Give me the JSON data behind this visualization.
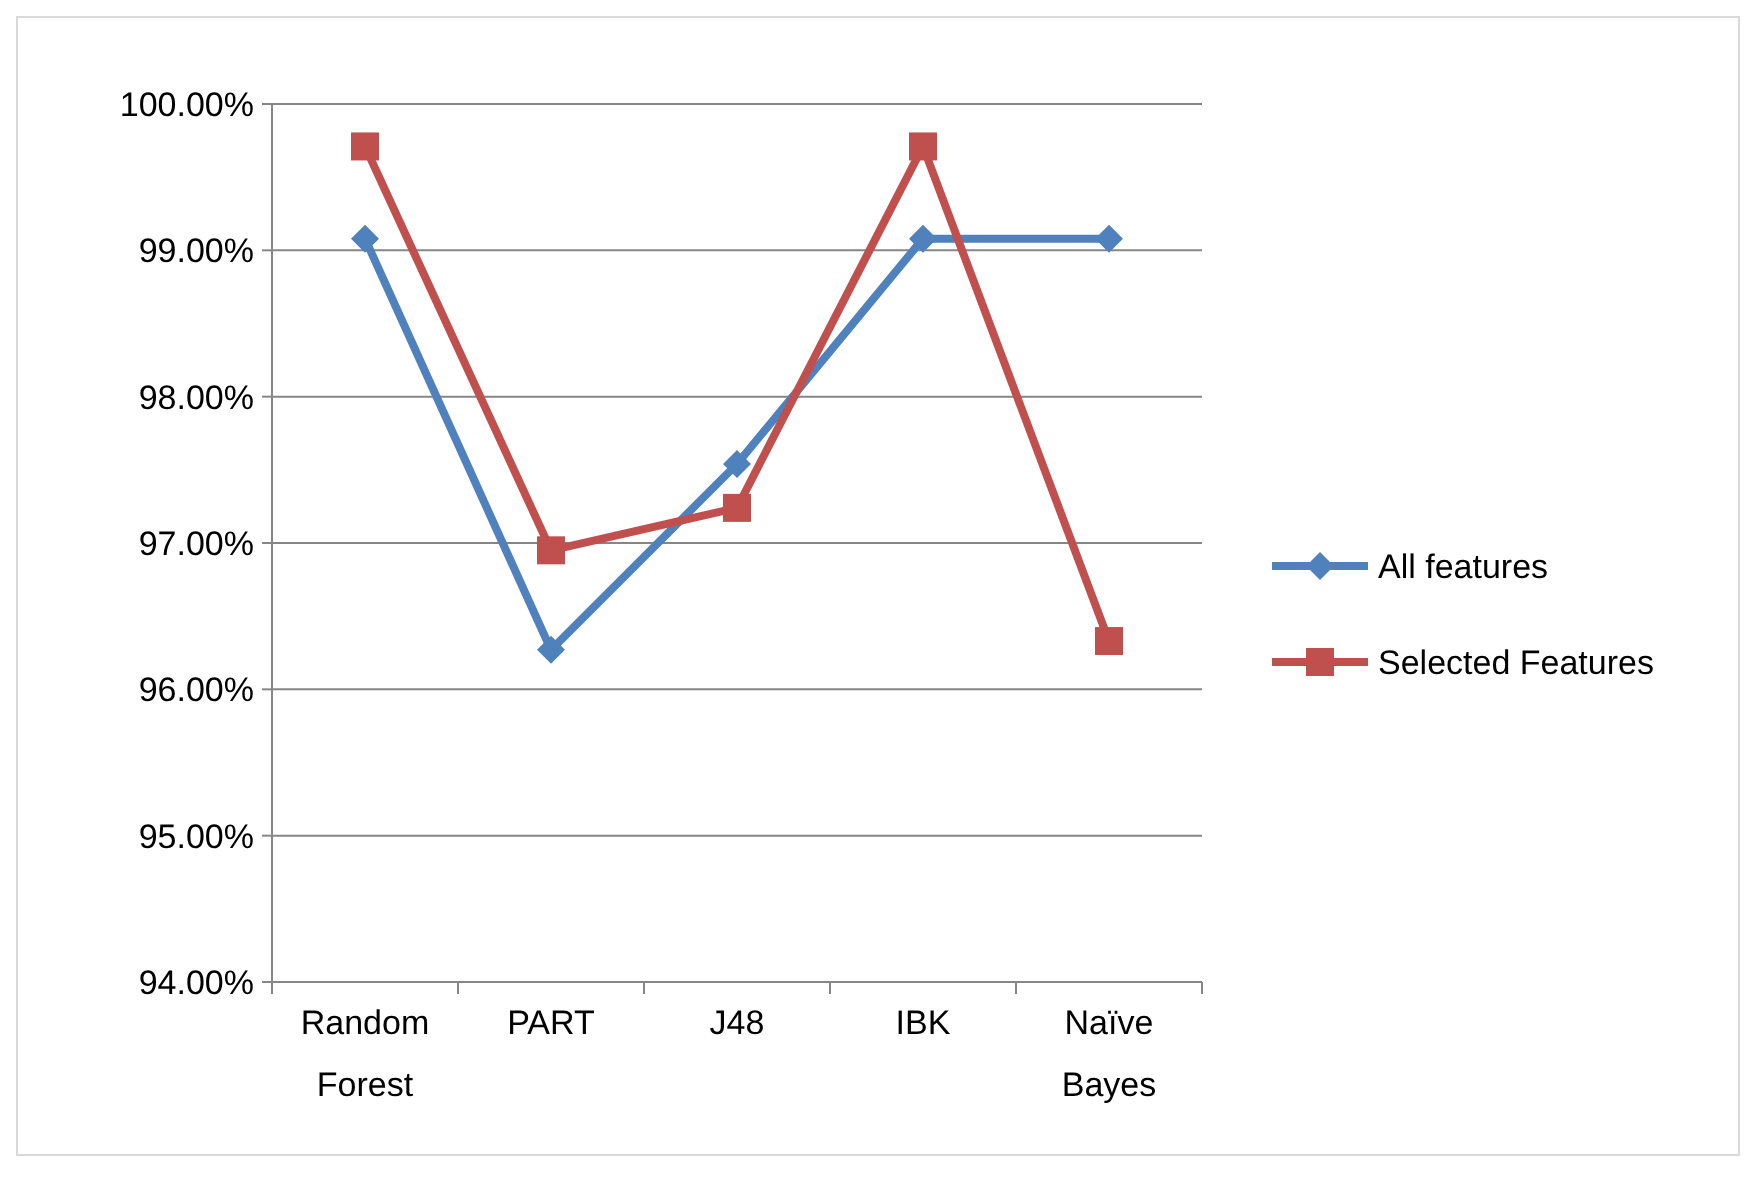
{
  "chart_data": {
    "type": "line",
    "categories": [
      "Random Forest",
      "PART",
      "J48",
      "IBK",
      "Naïve Bayes"
    ],
    "series": [
      {
        "name": "All features",
        "color": "#4f81bd",
        "marker": "diamond",
        "values": [
          99.08,
          96.27,
          97.54,
          99.08,
          99.08
        ]
      },
      {
        "name": "Selected Features",
        "color": "#c0504d",
        "marker": "square",
        "values": [
          99.71,
          96.95,
          97.24,
          99.71,
          96.33
        ]
      }
    ],
    "ylim": [
      94,
      100
    ],
    "yticks": [
      {
        "value": 94,
        "label": "94.00%"
      },
      {
        "value": 95,
        "label": "95.00%"
      },
      {
        "value": 96,
        "label": "96.00%"
      },
      {
        "value": 97,
        "label": "97.00%"
      },
      {
        "value": 98,
        "label": "98.00%"
      },
      {
        "value": 99,
        "label": "99.00%"
      },
      {
        "value": 100,
        "label": "100.00%"
      }
    ],
    "grid": "y",
    "legend": "right",
    "line_style": "solid"
  }
}
